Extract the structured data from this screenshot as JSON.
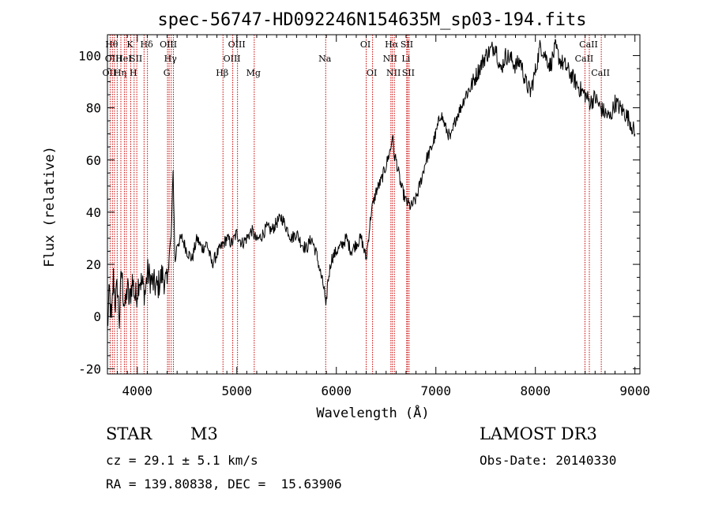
{
  "chart_data": {
    "type": "line",
    "title": "spec-56747-HD092246N154635M_sp03-194.fits",
    "xlabel": "Wavelength (Å)",
    "ylabel": "Flux (relative)",
    "xlim": [
      3700,
      9050
    ],
    "ylim": [
      -22,
      108
    ],
    "xticks": [
      4000,
      5000,
      6000,
      7000,
      8000,
      9000
    ],
    "yticks": [
      -20,
      0,
      20,
      40,
      60,
      80,
      100
    ],
    "line_color": "#000000",
    "marker_color": "#cc0000",
    "series": [
      {
        "x": [
          3700,
          3720,
          3740,
          3760,
          3780,
          3800,
          3820,
          3840,
          3860,
          3880,
          3900,
          3920,
          3950,
          3980,
          4000,
          4020,
          4050,
          4080,
          4100,
          4150,
          4200,
          4250,
          4300,
          4320,
          4340,
          4360,
          4380,
          4400,
          4450,
          4500,
          4550,
          4600,
          4650,
          4700,
          4750,
          4800,
          4850,
          4900,
          4950,
          5000,
          5050,
          5100,
          5150,
          5200,
          5250,
          5300,
          5350,
          5400,
          5450,
          5500,
          5550,
          5600,
          5650,
          5700,
          5750,
          5800,
          5850,
          5880,
          5895,
          5910,
          5950,
          6000,
          6050,
          6100,
          6150,
          6200,
          6250,
          6300,
          6350,
          6400,
          6450,
          6500,
          6550,
          6563,
          6580,
          6600,
          6650,
          6700,
          6750,
          6800,
          6850,
          6900,
          6950,
          7000,
          7050,
          7100,
          7150,
          7200,
          7250,
          7300,
          7350,
          7400,
          7450,
          7500,
          7550,
          7600,
          7650,
          7700,
          7750,
          7800,
          7850,
          7900,
          7950,
          8000,
          8050,
          8100,
          8150,
          8200,
          8250,
          8300,
          8350,
          8400,
          8450,
          8500,
          8550,
          8600,
          8650,
          8700,
          8750,
          8800,
          8850,
          8900,
          8950,
          8980,
          9000
        ],
        "y": [
          -5,
          10,
          -3,
          15,
          5,
          12,
          -2,
          18,
          8,
          3,
          12,
          5,
          14,
          7,
          10,
          15,
          12,
          9,
          17,
          13,
          11,
          16,
          12,
          24,
          30,
          55,
          20,
          28,
          30,
          25,
          22,
          30,
          26,
          28,
          20,
          24,
          27,
          30,
          28,
          32,
          28,
          30,
          33,
          29,
          31,
          34,
          33,
          36,
          38,
          34,
          30,
          32,
          28,
          26,
          30,
          24,
          15,
          10,
          2,
          12,
          22,
          25,
          27,
          30,
          25,
          28,
          30,
          22,
          40,
          48,
          52,
          58,
          65,
          70,
          62,
          60,
          50,
          44,
          42,
          45,
          52,
          60,
          64,
          70,
          78,
          72,
          68,
          76,
          80,
          85,
          88,
          92,
          96,
          100,
          102,
          104,
          94,
          100,
          99,
          96,
          98,
          90,
          86,
          94,
          104,
          100,
          96,
          103,
          98,
          96,
          93,
          90,
          87,
          85,
          82,
          84,
          80,
          78,
          76,
          82,
          80,
          78,
          75,
          72,
          70
        ]
      }
    ],
    "lines": [
      {
        "wl": 3727,
        "label": "OII",
        "row": 2
      },
      {
        "wl": 3750,
        "label": "Hθ",
        "row": 0
      },
      {
        "wl": 3770,
        "label": "OIII",
        "row": 1
      },
      {
        "wl": 3798,
        "label": "",
        "row": -1
      },
      {
        "wl": 3835,
        "label": "Hη",
        "row": 2
      },
      {
        "wl": 3870,
        "label": "HeI",
        "row": 1
      },
      {
        "wl": 3890,
        "label": "",
        "row": -1
      },
      {
        "wl": 3934,
        "label": "K",
        "row": 0
      },
      {
        "wl": 3968,
        "label": "H",
        "row": 2
      },
      {
        "wl": 3995,
        "label": "SII",
        "row": 1
      },
      {
        "wl": 4102,
        "label": "Hδ",
        "row": 0
      },
      {
        "wl": 4068,
        "label": "",
        "row": -1
      },
      {
        "wl": 4304,
        "label": "G",
        "row": 2
      },
      {
        "wl": 4320,
        "label": "OIII",
        "row": 0
      },
      {
        "wl": 4341,
        "label": "Hγ",
        "row": 1
      },
      {
        "wl": 4363,
        "label": "",
        "row": -1
      },
      {
        "wl": 4861,
        "label": "Hβ",
        "row": 2
      },
      {
        "wl": 4959,
        "label": "OIII",
        "row": 1
      },
      {
        "wl": 5007,
        "label": "OIII",
        "row": 0
      },
      {
        "wl": 5175,
        "label": "Mg",
        "row": 2
      },
      {
        "wl": 5893,
        "label": "Na",
        "row": 1
      },
      {
        "wl": 6300,
        "label": "OI",
        "row": 0
      },
      {
        "wl": 6364,
        "label": "OI",
        "row": 2
      },
      {
        "wl": 6548,
        "label": "NII",
        "row": 1
      },
      {
        "wl": 6563,
        "label": "Hα",
        "row": 0
      },
      {
        "wl": 6583,
        "label": "NII",
        "row": 2
      },
      {
        "wl": 6707,
        "label": "Li",
        "row": 1
      },
      {
        "wl": 6716,
        "label": "SII",
        "row": 0
      },
      {
        "wl": 6731,
        "label": "SII",
        "row": 2
      },
      {
        "wl": 8498,
        "label": "CaII",
        "row": 1
      },
      {
        "wl": 8542,
        "label": "CaII",
        "row": 0
      },
      {
        "wl": 8662,
        "label": "CaII",
        "row": 2
      }
    ]
  },
  "info": {
    "object_class": "STAR",
    "subclass": "M3",
    "survey": "LAMOST DR3",
    "cz": "cz = 29.1 ± 5.1 km/s",
    "obs_date": "Obs-Date: 20140330",
    "coords": "RA = 139.80838, DEC =  15.63906"
  }
}
